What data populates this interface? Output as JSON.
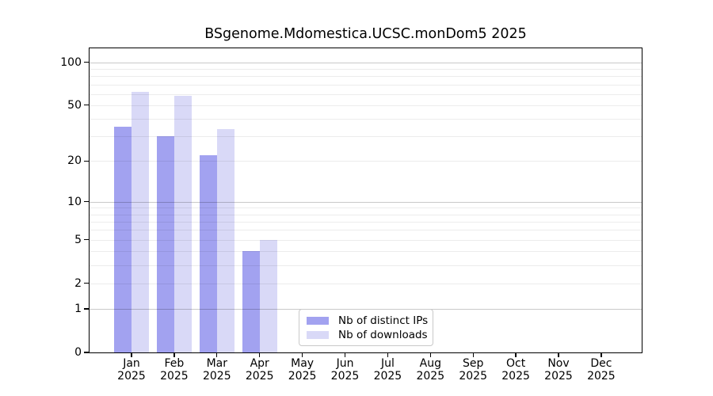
{
  "chart_data": {
    "type": "bar",
    "title": "BSgenome.Mdomestica.UCSC.monDom5 2025",
    "year_label": "2025",
    "categories": [
      "Jan",
      "Feb",
      "Mar",
      "Apr",
      "May",
      "Jun",
      "Jul",
      "Aug",
      "Sep",
      "Oct",
      "Nov",
      "Dec"
    ],
    "series": [
      {
        "name": "Nb of distinct IPs",
        "color": "#a2a2f0",
        "values": [
          35,
          30,
          22,
          4,
          0,
          0,
          0,
          0,
          0,
          0,
          0,
          0
        ]
      },
      {
        "name": "Nb of downloads",
        "color": "#d9d9f7",
        "values": [
          62,
          58,
          34,
          5,
          0,
          0,
          0,
          0,
          0,
          0,
          0,
          0
        ]
      }
    ],
    "yscale": "log1p",
    "ylim": [
      0,
      125
    ],
    "yticks": [
      0,
      1,
      2,
      5,
      10,
      20,
      50,
      100
    ],
    "major_gridlines": [
      1,
      10,
      100
    ],
    "minor_gridlines": [
      2,
      3,
      4,
      5,
      6,
      7,
      8,
      9,
      20,
      30,
      40,
      50,
      60,
      70,
      80,
      90
    ],
    "grid": "horizontal",
    "legend_position": "inside-bottom-center",
    "xlabel": "",
    "ylabel": ""
  }
}
